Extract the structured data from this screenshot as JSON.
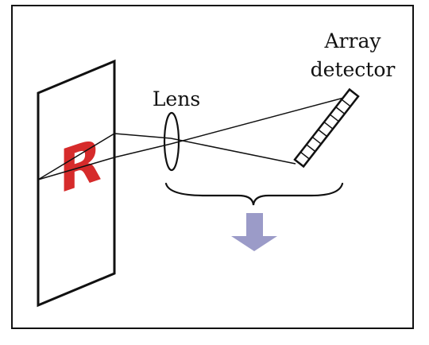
{
  "labels": {
    "lens": "Lens",
    "array_detector_line1": "Array",
    "array_detector_line2": "detector"
  },
  "object": {
    "letter": "R"
  },
  "colors": {
    "frame": "#111111",
    "letter": "#d62b2b",
    "arrow": "#9b9bc8",
    "background": "#ffffff"
  }
}
